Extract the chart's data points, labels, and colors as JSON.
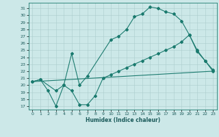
{
  "xlabel": "Humidex (Indice chaleur)",
  "bg_color": "#cce8e8",
  "line_color": "#1a7a6e",
  "grid_color": "#aacccc",
  "xlim": [
    -0.5,
    23.5
  ],
  "ylim": [
    16.5,
    31.8
  ],
  "yticks": [
    17,
    18,
    19,
    20,
    21,
    22,
    23,
    24,
    25,
    26,
    27,
    28,
    29,
    30,
    31
  ],
  "xticks": [
    0,
    1,
    2,
    3,
    4,
    5,
    6,
    7,
    8,
    9,
    10,
    11,
    12,
    13,
    14,
    15,
    16,
    17,
    18,
    19,
    20,
    21,
    22,
    23
  ],
  "line1_x": [
    0,
    1,
    2,
    3,
    4,
    5,
    6,
    7,
    8,
    9,
    10,
    11,
    12,
    13,
    14,
    15,
    16,
    17,
    18,
    19,
    20,
    21,
    22,
    23
  ],
  "line1_y": [
    20.5,
    20.8,
    19.2,
    17.0,
    20.0,
    19.2,
    17.2,
    17.2,
    18.5,
    21.0,
    21.5,
    22.0,
    22.5,
    23.0,
    23.5,
    24.0,
    24.5,
    25.0,
    25.5,
    26.2,
    27.2,
    24.8,
    23.5,
    22.2
  ],
  "line2_x": [
    0,
    1,
    3,
    4,
    5,
    6,
    7,
    10,
    11,
    12,
    13,
    14,
    15,
    16,
    17,
    18,
    19,
    20,
    21,
    22,
    23
  ],
  "line2_y": [
    20.5,
    20.8,
    19.2,
    20.0,
    24.5,
    20.0,
    21.3,
    26.5,
    27.0,
    28.0,
    29.8,
    30.2,
    31.2,
    31.0,
    30.5,
    30.2,
    29.2,
    27.2,
    25.0,
    23.5,
    22.0
  ],
  "line3_x": [
    0,
    23
  ],
  "line3_y": [
    20.5,
    22.0
  ]
}
